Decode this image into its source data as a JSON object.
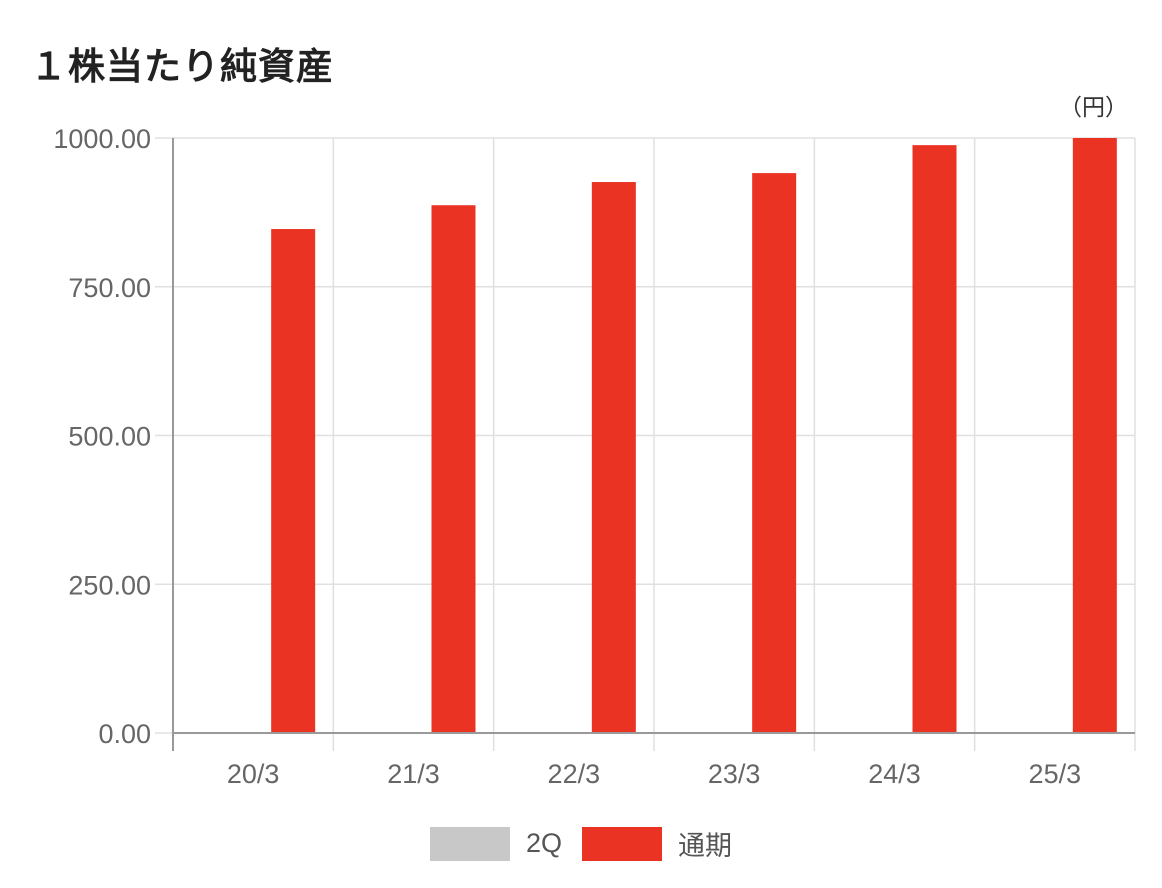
{
  "title": "１株当たり純資産",
  "unit": "（円）",
  "colors": {
    "series_2q": "#c8c8c8",
    "series_full": "#ea3323",
    "grid": "#e0e0e0",
    "axis": "#999999"
  },
  "chart_data": {
    "type": "bar",
    "title": "１株当たり純資産",
    "ylabel": "（円）",
    "xlabel": "",
    "categories": [
      "20/3",
      "21/3",
      "22/3",
      "23/3",
      "24/3",
      "25/3"
    ],
    "ylim": [
      0,
      1000
    ],
    "yticks": [
      "0.00",
      "250.00",
      "500.00",
      "750.00",
      "1000.00"
    ],
    "grid": true,
    "legend_position": "bottom",
    "series": [
      {
        "name": "2Q",
        "values": [
          null,
          null,
          null,
          null,
          null,
          null
        ]
      },
      {
        "name": "通期",
        "values": [
          847,
          887,
          926,
          941,
          988,
          1000
        ]
      }
    ]
  }
}
